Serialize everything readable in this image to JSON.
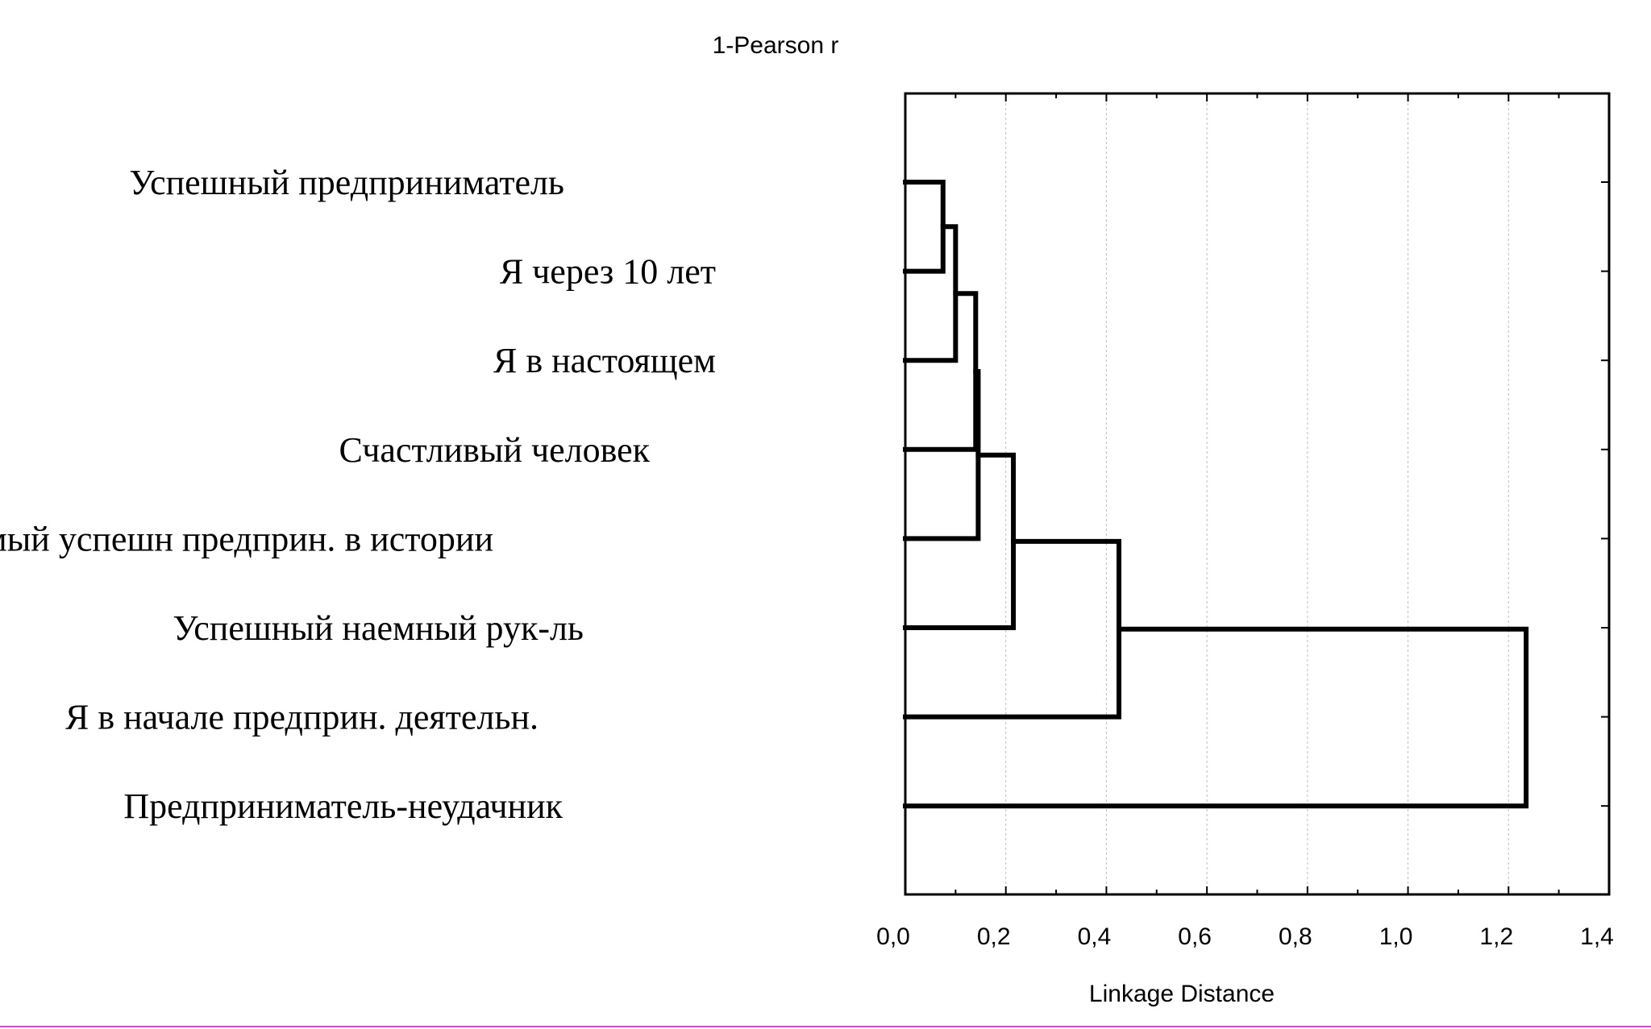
{
  "chart_data": {
    "type": "dendrogram",
    "title": "1-Pearson r",
    "xlabel": "Linkage Distance",
    "xlim": [
      0.0,
      1.4
    ],
    "x_ticks": [
      "0,0",
      "0,2",
      "0,4",
      "0,6",
      "0,8",
      "1,0",
      "1,2",
      "1,4"
    ],
    "grid": true,
    "leaves": [
      "Успешный предприниматель",
      "Я через 10 лет",
      "Я в настоящем",
      "Счастливый человек",
      "Самый успешн предприн. в истории",
      "Успешный наемный рук-ль",
      "Я в начале предприн. деятельн.",
      "Предприниматель-неудачник"
    ],
    "merges": [
      {
        "left": "Успешный предприниматель",
        "right": "Я через 10 лет",
        "distance": 0.075
      },
      {
        "left": "cluster-1",
        "right": "Я в настоящем",
        "distance": 0.1
      },
      {
        "left": "cluster-2",
        "right": "Счастливый человек",
        "distance": 0.14
      },
      {
        "left": "cluster-3",
        "right": "Самый успешн предприн. в истории",
        "distance": 0.145
      },
      {
        "left": "cluster-4",
        "right": "Успешный наемный рук-ль",
        "distance": 0.215
      },
      {
        "left": "cluster-5",
        "right": "Я в начале предприн. деятельн.",
        "distance": 0.425
      },
      {
        "left": "cluster-6",
        "right": "Предприниматель-неудачник",
        "distance": 1.235
      }
    ],
    "line_color": "#000000",
    "grid_color": "#bdbdbd"
  },
  "frame": {
    "bottom_border_color": "#c24fc2"
  }
}
